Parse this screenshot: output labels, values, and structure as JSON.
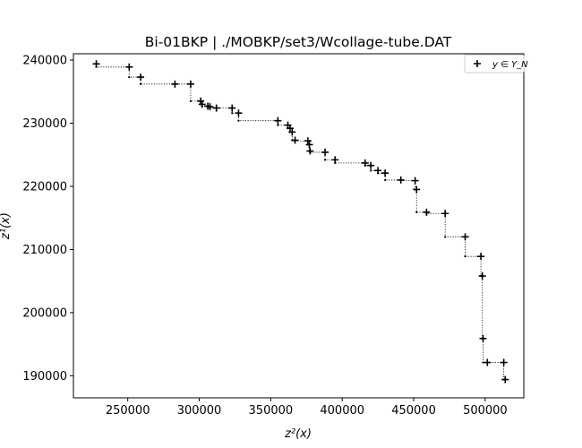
{
  "chart_data": {
    "type": "scatter",
    "title": "Bi-01BKP | ./MOBKP/set3/Wcollage-tube.DAT",
    "xlabel": "z²(x)",
    "ylabel": "z¹(x)",
    "xlim": [
      212000,
      527000
    ],
    "ylim": [
      186500,
      241000
    ],
    "x_ticks": [
      250000,
      300000,
      350000,
      400000,
      450000,
      500000
    ],
    "x_tick_labels": [
      "250000",
      "300000",
      "350000",
      "400000",
      "450000",
      "500000"
    ],
    "y_ticks": [
      190000,
      200000,
      210000,
      220000,
      230000,
      240000
    ],
    "y_tick_labels": [
      "190000",
      "200000",
      "210000",
      "220000",
      "230000",
      "240000"
    ],
    "grid": false,
    "legend": {
      "position": "top-right",
      "entries": [
        "y ∈ Y_N"
      ]
    },
    "series": [
      {
        "name": "y ∈ Y_N",
        "marker": "plus",
        "color": "#000000",
        "points": [
          [
            228000,
            239400
          ],
          [
            251000,
            238900
          ],
          [
            259000,
            237300
          ],
          [
            283000,
            236200
          ],
          [
            294000,
            236200
          ],
          [
            301000,
            233500
          ],
          [
            302000,
            233000
          ],
          [
            306000,
            232700
          ],
          [
            307500,
            232600
          ],
          [
            312000,
            232400
          ],
          [
            323000,
            232400
          ],
          [
            327500,
            231600
          ],
          [
            355000,
            230400
          ],
          [
            362000,
            229700
          ],
          [
            363500,
            229200
          ],
          [
            365000,
            228600
          ],
          [
            367000,
            227300
          ],
          [
            376000,
            227200
          ],
          [
            377000,
            226600
          ],
          [
            377500,
            225600
          ],
          [
            388000,
            225400
          ],
          [
            395000,
            224200
          ],
          [
            416000,
            223700
          ],
          [
            420000,
            223300
          ],
          [
            425000,
            222500
          ],
          [
            430000,
            222100
          ],
          [
            441000,
            221000
          ],
          [
            451000,
            220900
          ],
          [
            452000,
            219500
          ],
          [
            459000,
            215900
          ],
          [
            472000,
            215700
          ],
          [
            486000,
            212000
          ],
          [
            497000,
            208900
          ],
          [
            498000,
            205800
          ],
          [
            498500,
            195900
          ],
          [
            501500,
            192100
          ],
          [
            513000,
            192100
          ],
          [
            514000,
            189400
          ]
        ]
      }
    ]
  }
}
